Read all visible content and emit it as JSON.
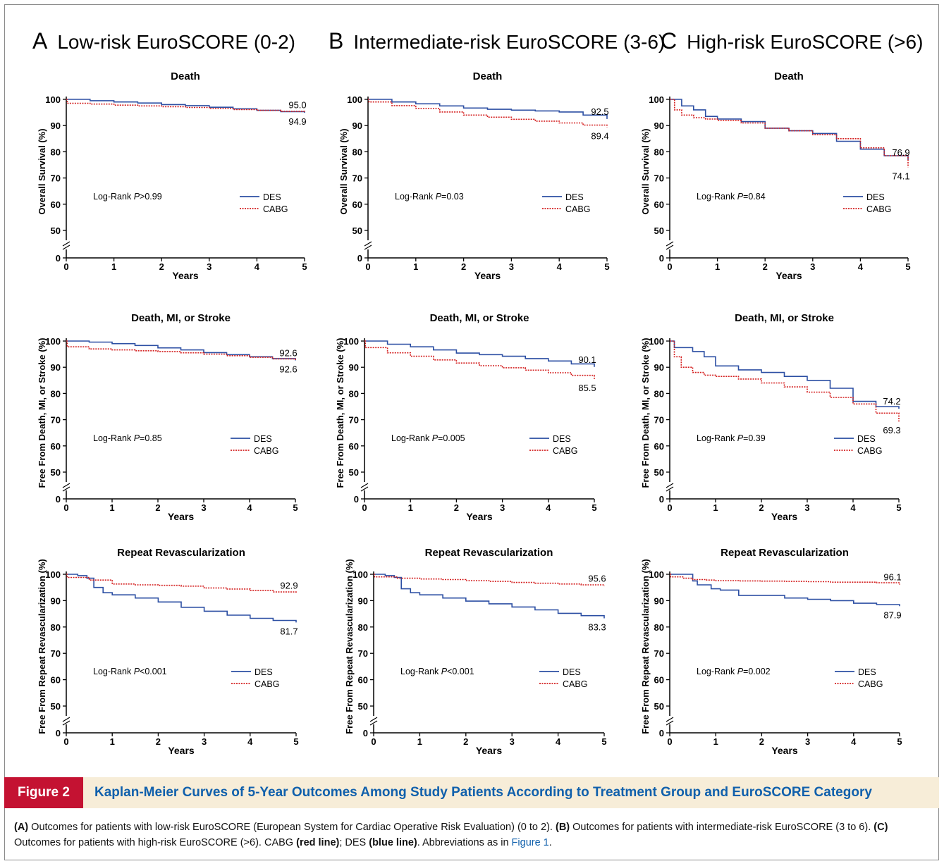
{
  "panel_headings": [
    {
      "letter": "A",
      "text": "Low-risk EuroSCORE (0-2)"
    },
    {
      "letter": "B",
      "text": "Intermediate-risk EuroSCORE (3-6)"
    },
    {
      "letter": "C",
      "text": "High-risk EuroSCORE (>6)"
    }
  ],
  "colors": {
    "DES": "#2c4fa3",
    "CABG": "#d42020"
  },
  "chart_data": [
    {
      "type": "line",
      "panel": "A",
      "title": "Death",
      "xlabel": "Years",
      "ylabel": "Overall Survival (%)",
      "xlim": [
        0,
        5
      ],
      "ylim": [
        0,
        100
      ],
      "y_axis_break": [
        0,
        50
      ],
      "log_rank": "P>0.99",
      "legend": [
        "DES",
        "CABG"
      ],
      "end_labels": [
        "95.0",
        "94.9"
      ],
      "series": [
        {
          "name": "DES",
          "x": [
            0,
            0.5,
            1,
            1.5,
            2,
            2.5,
            3,
            3.5,
            4,
            4.5,
            5
          ],
          "y": [
            100,
            99.5,
            99,
            98.6,
            98,
            97.6,
            97,
            96.4,
            95.8,
            95.3,
            94.9
          ]
        },
        {
          "name": "CABG",
          "x": [
            0,
            0.02,
            0.5,
            1,
            1.5,
            2,
            2.5,
            3,
            3.5,
            4,
            4.5,
            5
          ],
          "y": [
            100,
            98.5,
            98.2,
            97.8,
            97.5,
            97.2,
            96.9,
            96.5,
            96.1,
            95.8,
            95.4,
            95.0
          ]
        }
      ]
    },
    {
      "type": "line",
      "panel": "B",
      "title": "Death",
      "xlabel": "Years",
      "ylabel": "Overall Survival (%)",
      "xlim": [
        0,
        5
      ],
      "ylim": [
        0,
        100
      ],
      "y_axis_break": [
        0,
        50
      ],
      "log_rank": "P=0.03",
      "legend": [
        "DES",
        "CABG"
      ],
      "end_labels": [
        "92.5",
        "89.4"
      ],
      "series": [
        {
          "name": "DES",
          "x": [
            0,
            0.5,
            1,
            1.5,
            2,
            2.5,
            3,
            3.5,
            4,
            4.5,
            5
          ],
          "y": [
            100,
            99,
            98.3,
            97.5,
            96.7,
            96.2,
            95.9,
            95.6,
            95.2,
            94,
            92.5
          ]
        },
        {
          "name": "CABG",
          "x": [
            0,
            0.02,
            0.5,
            1,
            1.5,
            2,
            2.5,
            3,
            3.5,
            4,
            4.5,
            5
          ],
          "y": [
            100,
            99,
            97.6,
            96.5,
            95.2,
            94,
            93.2,
            92.4,
            91.7,
            91,
            90.2,
            89.4
          ]
        }
      ]
    },
    {
      "type": "line",
      "panel": "C",
      "title": "Death",
      "xlabel": "Years",
      "ylabel": "Overall Survival (%)",
      "xlim": [
        0,
        5
      ],
      "ylim": [
        0,
        100
      ],
      "y_axis_break": [
        0,
        50
      ],
      "log_rank": "P=0.84",
      "legend": [
        "DES",
        "CABG"
      ],
      "end_labels": [
        "76.9",
        "74.1"
      ],
      "series": [
        {
          "name": "DES",
          "x": [
            0,
            0.25,
            0.5,
            0.75,
            1,
            1.5,
            2,
            2.5,
            3,
            3.5,
            4,
            4.5,
            5
          ],
          "y": [
            100,
            97.5,
            96,
            93.5,
            92.5,
            91.5,
            89,
            88,
            87,
            84,
            81,
            78.5,
            76.9
          ]
        },
        {
          "name": "CABG",
          "x": [
            0,
            0.1,
            0.25,
            0.5,
            0.75,
            1,
            1.5,
            2,
            2.5,
            3,
            3.5,
            4,
            4.5,
            5
          ],
          "y": [
            100,
            96,
            94,
            93,
            92.5,
            92,
            91,
            89,
            88,
            86.5,
            85,
            81.5,
            78.5,
            74.1
          ]
        }
      ]
    },
    {
      "type": "line",
      "panel": "A",
      "title": "Death, MI, or Stroke",
      "xlabel": "Years",
      "ylabel": "Free From Death, MI, or Stroke (%)",
      "xlim": [
        0,
        5
      ],
      "ylim": [
        0,
        100
      ],
      "y_axis_break": [
        0,
        50
      ],
      "log_rank": "P=0.85",
      "legend": [
        "DES",
        "CABG"
      ],
      "end_labels": [
        "92.6",
        "92.6"
      ],
      "series": [
        {
          "name": "DES",
          "x": [
            0,
            0.5,
            1,
            1.5,
            2,
            2.5,
            3,
            3.5,
            4,
            4.5,
            5
          ],
          "y": [
            100,
            99.6,
            99,
            98.3,
            97.4,
            96.6,
            95.6,
            94.8,
            94,
            93.3,
            92.6
          ]
        },
        {
          "name": "CABG",
          "x": [
            0,
            0.02,
            0.5,
            1,
            1.5,
            2,
            2.5,
            3,
            3.5,
            4,
            4.5,
            5
          ],
          "y": [
            100,
            97.8,
            97,
            96.6,
            96.3,
            96,
            95.5,
            95,
            94.4,
            93.8,
            93.2,
            92.6
          ]
        }
      ]
    },
    {
      "type": "line",
      "panel": "B",
      "title": "Death, MI, or Stroke",
      "xlabel": "Years",
      "ylabel": "Free From Death, MI, or Stroke (%)",
      "xlim": [
        0,
        5
      ],
      "ylim": [
        0,
        100
      ],
      "y_axis_break": [
        0,
        50
      ],
      "log_rank": "P=0.005",
      "legend": [
        "DES",
        "CABG"
      ],
      "end_labels": [
        "90.1",
        "85.5"
      ],
      "series": [
        {
          "name": "DES",
          "x": [
            0,
            0.5,
            1,
            1.5,
            2,
            2.5,
            3,
            3.5,
            4,
            4.5,
            5
          ],
          "y": [
            100,
            98.8,
            97.8,
            96.6,
            95.4,
            94.8,
            94.2,
            93.3,
            92.4,
            91.3,
            90.1
          ]
        },
        {
          "name": "CABG",
          "x": [
            0,
            0.02,
            0.5,
            1,
            1.5,
            2,
            2.5,
            3,
            3.5,
            4,
            4.5,
            5
          ],
          "y": [
            100,
            97.5,
            95.5,
            94.2,
            92.8,
            91.6,
            90.6,
            89.8,
            88.9,
            87.9,
            86.9,
            85.5
          ]
        }
      ]
    },
    {
      "type": "line",
      "panel": "C",
      "title": "Death, MI, or Stroke",
      "xlabel": "Years",
      "ylabel": "Free From Death, MI, or Stroke (%)",
      "xlim": [
        0,
        5
      ],
      "ylim": [
        0,
        100
      ],
      "y_axis_break": [
        0,
        50
      ],
      "log_rank": "P=0.39",
      "legend": [
        "DES",
        "CABG"
      ],
      "end_labels": [
        "74.2",
        "69.3"
      ],
      "series": [
        {
          "name": "DES",
          "x": [
            0,
            0.1,
            0.5,
            0.75,
            1,
            1.5,
            2,
            2.5,
            3,
            3.5,
            4,
            4.5,
            5
          ],
          "y": [
            100,
            97.5,
            96,
            94,
            90.5,
            89,
            88,
            86.5,
            85,
            82,
            77,
            75,
            74.2
          ]
        },
        {
          "name": "CABG",
          "x": [
            0,
            0.1,
            0.25,
            0.5,
            0.75,
            1,
            1.5,
            2,
            2.5,
            3,
            3.5,
            4,
            4.5,
            5
          ],
          "y": [
            100,
            94,
            90,
            88,
            87,
            86.5,
            85.5,
            84,
            82.5,
            80.5,
            78.5,
            76,
            72.5,
            69.3
          ]
        }
      ]
    },
    {
      "type": "line",
      "panel": "A",
      "title": "Repeat Revascularization",
      "xlabel": "Years",
      "ylabel": "Free From Repeat Revascularization (%)",
      "xlim": [
        0,
        5
      ],
      "ylim": [
        0,
        100
      ],
      "y_axis_break": [
        0,
        50
      ],
      "log_rank": "P<0.001",
      "legend": [
        "DES",
        "CABG"
      ],
      "end_labels": [
        "92.9",
        "81.7"
      ],
      "series": [
        {
          "name": "DES",
          "x": [
            0,
            0.25,
            0.45,
            0.6,
            0.8,
            1,
            1.5,
            2,
            2.5,
            3,
            3.5,
            4,
            4.5,
            5
          ],
          "y": [
            100,
            99.5,
            98.5,
            95,
            93,
            92.2,
            91,
            89.5,
            87.5,
            86,
            84.5,
            83.3,
            82.5,
            81.7
          ]
        },
        {
          "name": "CABG",
          "x": [
            0,
            0.02,
            0.5,
            1,
            1.5,
            2,
            2.5,
            3,
            3.5,
            4,
            4.5,
            5
          ],
          "y": [
            100,
            98.8,
            97.8,
            96.3,
            96,
            95.8,
            95.5,
            94.8,
            94.4,
            93.9,
            93.3,
            92.9
          ]
        }
      ]
    },
    {
      "type": "line",
      "panel": "B",
      "title": "Repeat Revascularization",
      "xlabel": "Years",
      "ylabel": "Free From Repeat Revascularization (%)",
      "xlim": [
        0,
        5
      ],
      "ylim": [
        0,
        100
      ],
      "y_axis_break": [
        0,
        50
      ],
      "log_rank": "P<0.001",
      "legend": [
        "DES",
        "CABG"
      ],
      "end_labels": [
        "95.6",
        "83.3"
      ],
      "series": [
        {
          "name": "DES",
          "x": [
            0,
            0.25,
            0.45,
            0.6,
            0.8,
            1,
            1.5,
            2,
            2.5,
            3,
            3.5,
            4,
            4.5,
            5
          ],
          "y": [
            100,
            99.5,
            98.8,
            94.5,
            93,
            92.2,
            91,
            89.8,
            88.8,
            87.6,
            86.5,
            85.2,
            84.3,
            83.3
          ]
        },
        {
          "name": "CABG",
          "x": [
            0,
            0.02,
            0.5,
            1,
            1.5,
            2,
            2.5,
            3,
            3.5,
            4,
            4.5,
            5
          ],
          "y": [
            100,
            99,
            98.5,
            98.2,
            98,
            97.6,
            97.3,
            96.9,
            96.6,
            96.3,
            96,
            95.6
          ]
        }
      ]
    },
    {
      "type": "line",
      "panel": "C",
      "title": "Repeat Revascularization",
      "xlabel": "Years",
      "ylabel": "Free From Repeat Revascularization (%)",
      "xlim": [
        0,
        5
      ],
      "ylim": [
        0,
        100
      ],
      "y_axis_break": [
        0,
        50
      ],
      "log_rank": "P=0.002",
      "legend": [
        "DES",
        "CABG"
      ],
      "end_labels": [
        "96.1",
        "87.9"
      ],
      "series": [
        {
          "name": "DES",
          "x": [
            0,
            0.4,
            0.5,
            0.6,
            0.9,
            1.1,
            1.5,
            2,
            2.5,
            3,
            3.5,
            4,
            4.5,
            5
          ],
          "y": [
            100,
            100,
            97.5,
            96,
            94.5,
            94,
            92,
            92,
            91,
            90.5,
            90,
            89,
            88.5,
            87.9
          ]
        },
        {
          "name": "CABG",
          "x": [
            0,
            0.02,
            0.3,
            0.5,
            0.8,
            1,
            1.5,
            2,
            2.5,
            3,
            3.5,
            4,
            4.5,
            5
          ],
          "y": [
            100,
            99,
            98.5,
            98,
            97.8,
            97.6,
            97.5,
            97.4,
            97.3,
            97.2,
            97,
            97,
            96.8,
            96.1
          ]
        }
      ]
    }
  ],
  "figure_label": "Figure 2",
  "figure_title": "Kaplan-Meier Curves of 5-Year Outcomes Among Study Patients According to Treatment Group and EuroSCORE Category",
  "caption": {
    "a_tag": "(A)",
    "a_text": " Outcomes for patients with low-risk EuroSCORE (European System for Cardiac Operative Risk Evaluation) (0 to 2). ",
    "b_tag": "(B)",
    "b_text": " Outcomes for patients with intermediate-risk EuroSCORE (3 to 6). ",
    "c_tag": "(C)",
    "c_text": " Outcomes for patients with high-risk EuroSCORE (>6). CABG ",
    "red_tag": "(red line)",
    "mid_text": "; DES ",
    "blue_tag": "(blue line)",
    "end_text": ". Abbreviations as in ",
    "link_text": "Figure 1",
    "period": "."
  }
}
